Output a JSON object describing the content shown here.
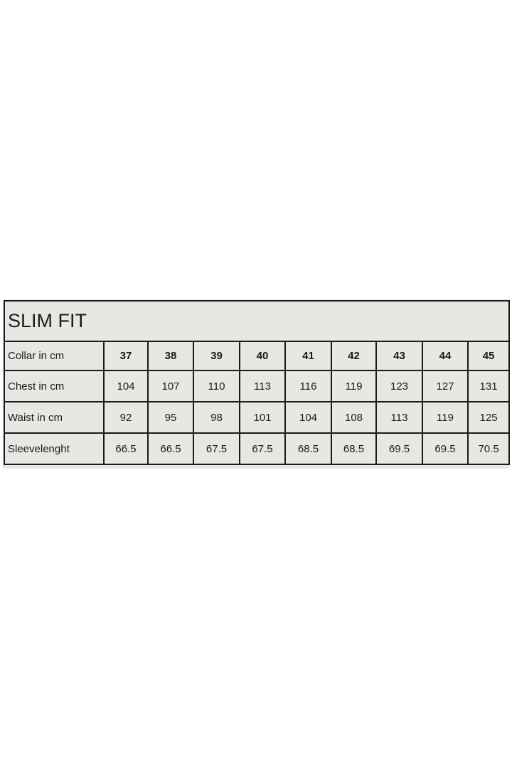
{
  "title": "SLIM FIT",
  "rows": [
    {
      "label": "Collar in cm",
      "values": [
        "37",
        "38",
        "39",
        "40",
        "41",
        "42",
        "43",
        "44",
        "45"
      ]
    },
    {
      "label": "Chest in cm",
      "values": [
        "104",
        "107",
        "110",
        "113",
        "116",
        "119",
        "123",
        "127",
        "131"
      ]
    },
    {
      "label": "Waist in cm",
      "values": [
        "92",
        "95",
        "98",
        "101",
        "104",
        "108",
        "113",
        "119",
        "125"
      ]
    },
    {
      "label": "Sleevelenght",
      "values": [
        "66.5",
        "66.5",
        "67.5",
        "67.5",
        "68.5",
        "68.5",
        "69.5",
        "69.5",
        "70.5"
      ]
    }
  ]
}
